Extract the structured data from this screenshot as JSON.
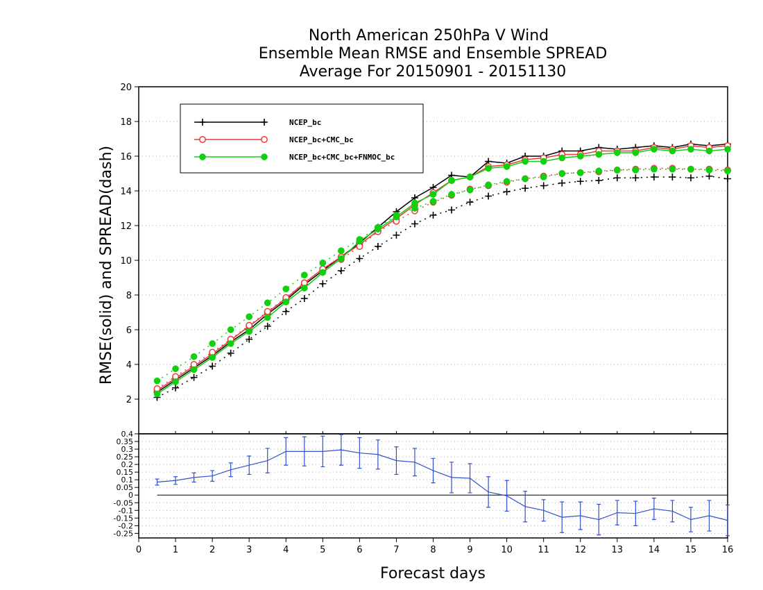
{
  "chart_data": [
    {
      "type": "line",
      "title_lines": [
        "North American 250hPa V Wind",
        "Ensemble Mean RMSE and Ensemble SPREAD",
        "Average For 20150901 - 20151130"
      ],
      "xlabel": "Forecast days",
      "ylabel": "RMSE(solid) and SPREAD(dash)",
      "xlim": [
        0,
        16
      ],
      "ylim": [
        0,
        20
      ],
      "x_ticks": [
        "0",
        "1",
        "2",
        "3",
        "4",
        "5",
        "6",
        "7",
        "8",
        "9",
        "10",
        "11",
        "12",
        "13",
        "14",
        "15",
        "16"
      ],
      "y_ticks": [
        "2",
        "4",
        "6",
        "8",
        "10",
        "12",
        "14",
        "16",
        "18",
        "20"
      ],
      "grid": "dotted horizontal",
      "legend_position": "top-left",
      "x": [
        0.5,
        1,
        1.5,
        2,
        2.5,
        3,
        3.5,
        4,
        4.5,
        5,
        5.5,
        6,
        6.5,
        7,
        7.5,
        8,
        8.5,
        9,
        9.5,
        10,
        10.5,
        11,
        11.5,
        12,
        12.5,
        13,
        13.5,
        14,
        14.5,
        15,
        15.5,
        16
      ],
      "series": [
        {
          "name": "NCEP_bc",
          "color": "#000000",
          "marker": "plus",
          "rmse": [
            2.4,
            3.1,
            3.8,
            4.5,
            5.3,
            6.0,
            6.9,
            7.7,
            8.6,
            9.4,
            10.2,
            11.0,
            11.9,
            12.8,
            13.6,
            14.2,
            14.9,
            14.8,
            15.7,
            15.6,
            16.0,
            16.0,
            16.3,
            16.3,
            16.5,
            16.4,
            16.5,
            16.6,
            16.5,
            16.7,
            16.6,
            16.7
          ],
          "spread": [
            2.1,
            2.65,
            3.25,
            3.9,
            4.65,
            5.45,
            6.2,
            7.05,
            7.8,
            8.65,
            9.4,
            10.1,
            10.8,
            11.45,
            12.1,
            12.6,
            12.9,
            13.35,
            13.7,
            13.95,
            14.15,
            14.3,
            14.45,
            14.55,
            14.6,
            14.75,
            14.75,
            14.8,
            14.8,
            14.75,
            14.85,
            14.7
          ]
        },
        {
          "name": "NCEP_bc+CMC_bc",
          "color": "#e83a3a",
          "marker": "circle-open",
          "rmse": [
            2.5,
            3.2,
            3.9,
            4.6,
            5.4,
            6.2,
            7.0,
            7.8,
            8.7,
            9.5,
            10.2,
            10.9,
            11.7,
            12.4,
            13.2,
            13.9,
            14.6,
            14.8,
            15.4,
            15.5,
            15.8,
            15.9,
            16.1,
            16.1,
            16.3,
            16.3,
            16.3,
            16.5,
            16.4,
            16.6,
            16.5,
            16.6
          ],
          "spread": [
            2.6,
            3.3,
            4.0,
            4.7,
            5.45,
            6.25,
            7.05,
            7.85,
            8.7,
            9.5,
            10.05,
            10.8,
            11.65,
            12.25,
            12.85,
            13.35,
            13.75,
            14.1,
            14.3,
            14.5,
            14.7,
            14.85,
            15.0,
            15.05,
            15.1,
            15.2,
            15.25,
            15.3,
            15.3,
            15.25,
            15.25,
            15.2
          ]
        },
        {
          "name": "NCEP_bc+CMC_bc+FNMOC_bc",
          "color": "#10d010",
          "marker": "circle-filled",
          "rmse": [
            2.3,
            3.0,
            3.7,
            4.4,
            5.2,
            5.9,
            6.7,
            7.6,
            8.4,
            9.3,
            10.1,
            11.1,
            11.8,
            12.5,
            13.3,
            13.8,
            14.6,
            14.8,
            15.3,
            15.4,
            15.7,
            15.7,
            15.9,
            16.0,
            16.1,
            16.2,
            16.2,
            16.4,
            16.3,
            16.4,
            16.3,
            16.4
          ],
          "spread": [
            3.05,
            3.75,
            4.45,
            5.2,
            6.0,
            6.75,
            7.55,
            8.35,
            9.15,
            9.85,
            10.55,
            11.2,
            11.9,
            12.6,
            13.0,
            13.4,
            13.8,
            14.05,
            14.35,
            14.55,
            14.7,
            14.8,
            15.0,
            15.05,
            15.15,
            15.2,
            15.2,
            15.25,
            15.25,
            15.25,
            15.2,
            15.15
          ]
        }
      ]
    },
    {
      "type": "line",
      "title": "",
      "xlim": [
        0,
        16
      ],
      "ylim": [
        -0.28,
        0.4
      ],
      "y_ticks": [
        "0.4",
        "0.35",
        "0.3",
        "0.25",
        "0.2",
        "0.15",
        "0.1",
        "0.05",
        "0",
        "-0.05",
        "-0.1",
        "-0.15",
        "-0.2",
        "-0.25"
      ],
      "grid": "dotted horizontal",
      "reference_line": 0,
      "series": [
        {
          "color": "#3050d0",
          "marker": "error-bar",
          "x": [
            0.5,
            1,
            1.5,
            2,
            2.5,
            3,
            3.5,
            4,
            4.5,
            5,
            5.5,
            6,
            6.5,
            7,
            7.5,
            8,
            8.5,
            9,
            9.5,
            10,
            10.5,
            11,
            11.5,
            12,
            12.5,
            13,
            13.5,
            14,
            14.5,
            15,
            15.5,
            16
          ],
          "values": [
            0.085,
            0.095,
            0.115,
            0.125,
            0.165,
            0.195,
            0.225,
            0.285,
            0.285,
            0.285,
            0.295,
            0.275,
            0.265,
            0.225,
            0.215,
            0.16,
            0.115,
            0.11,
            0.02,
            -0.005,
            -0.075,
            -0.1,
            -0.145,
            -0.135,
            -0.16,
            -0.115,
            -0.12,
            -0.09,
            -0.105,
            -0.16,
            -0.135,
            -0.165
          ],
          "error": [
            0.02,
            0.025,
            0.03,
            0.035,
            0.045,
            0.06,
            0.08,
            0.09,
            0.095,
            0.1,
            0.1,
            0.1,
            0.095,
            0.09,
            0.09,
            0.08,
            0.1,
            0.095,
            0.1,
            0.1,
            0.1,
            0.07,
            0.1,
            0.09,
            0.1,
            0.08,
            0.08,
            0.07,
            0.07,
            0.08,
            0.1,
            0.1
          ]
        }
      ]
    }
  ]
}
